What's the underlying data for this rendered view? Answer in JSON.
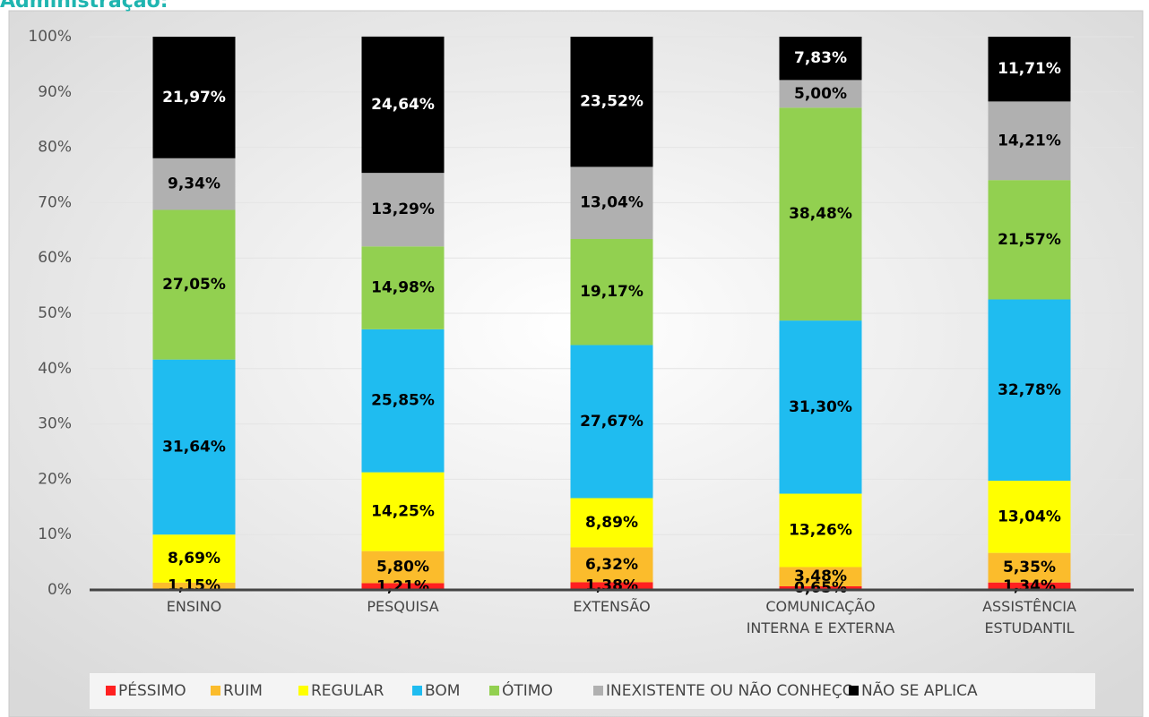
{
  "chart_data": {
    "type": "stacked-bar",
    "title": "Administração:",
    "categories": [
      "ENSINO",
      "PESQUISA",
      "EXTENSÃO",
      "COMUNICAÇÃO INTERNA E EXTERNA",
      "ASSISTÊNCIA ESTUDANTIL"
    ],
    "series": [
      {
        "name": "PÉSSIMO",
        "color": "#ff2020",
        "values": [
          0.16,
          1.21,
          1.38,
          0.65,
          1.34
        ],
        "value_labels": [
          null,
          "1,21%",
          "1,38%",
          "0,65%",
          "1,34%"
        ]
      },
      {
        "name": "RUIM",
        "color": "#fbbc2c",
        "values": [
          1.15,
          5.8,
          6.32,
          3.48,
          5.35
        ],
        "value_labels": [
          "1,15%",
          "5,80%",
          "6,32%",
          "3,48%",
          "5,35%"
        ]
      },
      {
        "name": "REGULAR",
        "color": "#ffff00",
        "values": [
          8.69,
          14.25,
          8.89,
          13.26,
          13.04
        ],
        "value_labels": [
          "8,69%",
          "14,25%",
          "8,89%",
          "13,26%",
          "13,04%"
        ]
      },
      {
        "name": "BOM",
        "color": "#1fbcf0",
        "values": [
          31.64,
          25.85,
          27.67,
          31.3,
          32.78
        ],
        "value_labels": [
          "31,64%",
          "25,85%",
          "27,67%",
          "31,30%",
          "32,78%"
        ]
      },
      {
        "name": "ÓTIMO",
        "color": "#92d050",
        "values": [
          27.05,
          14.98,
          19.17,
          38.48,
          21.57
        ],
        "value_labels": [
          "27,05%",
          "14,98%",
          "19,17%",
          "38,48%",
          "21,57%"
        ]
      },
      {
        "name": "INEXISTENTE OU NÃO CONHEÇO",
        "color": "#b0b0b0",
        "values": [
          9.34,
          13.29,
          13.04,
          5.0,
          14.21
        ],
        "value_labels": [
          "9,34%",
          "13,29%",
          "13,04%",
          "5,00%",
          "14,21%"
        ]
      },
      {
        "name": "NÃO SE APLICA",
        "color": "#000000",
        "values": [
          21.97,
          24.64,
          23.52,
          7.83,
          11.71
        ],
        "value_labels": [
          "21,97%",
          "24,64%",
          "23,52%",
          "7,83%",
          "11,71%"
        ]
      }
    ],
    "ylim": [
      0,
      100
    ],
    "yticks": [
      {
        "value": 0,
        "label": "0%"
      },
      {
        "value": 10,
        "label": "10%"
      },
      {
        "value": 20,
        "label": "20%"
      },
      {
        "value": 30,
        "label": "30%"
      },
      {
        "value": 40,
        "label": "40%"
      },
      {
        "value": 50,
        "label": "50%"
      },
      {
        "value": 60,
        "label": "60%"
      },
      {
        "value": 70,
        "label": "70%"
      },
      {
        "value": 80,
        "label": "80%"
      },
      {
        "value": 90,
        "label": "90%"
      },
      {
        "value": 100,
        "label": "100%"
      }
    ],
    "grid": true,
    "legend": "bottom"
  }
}
